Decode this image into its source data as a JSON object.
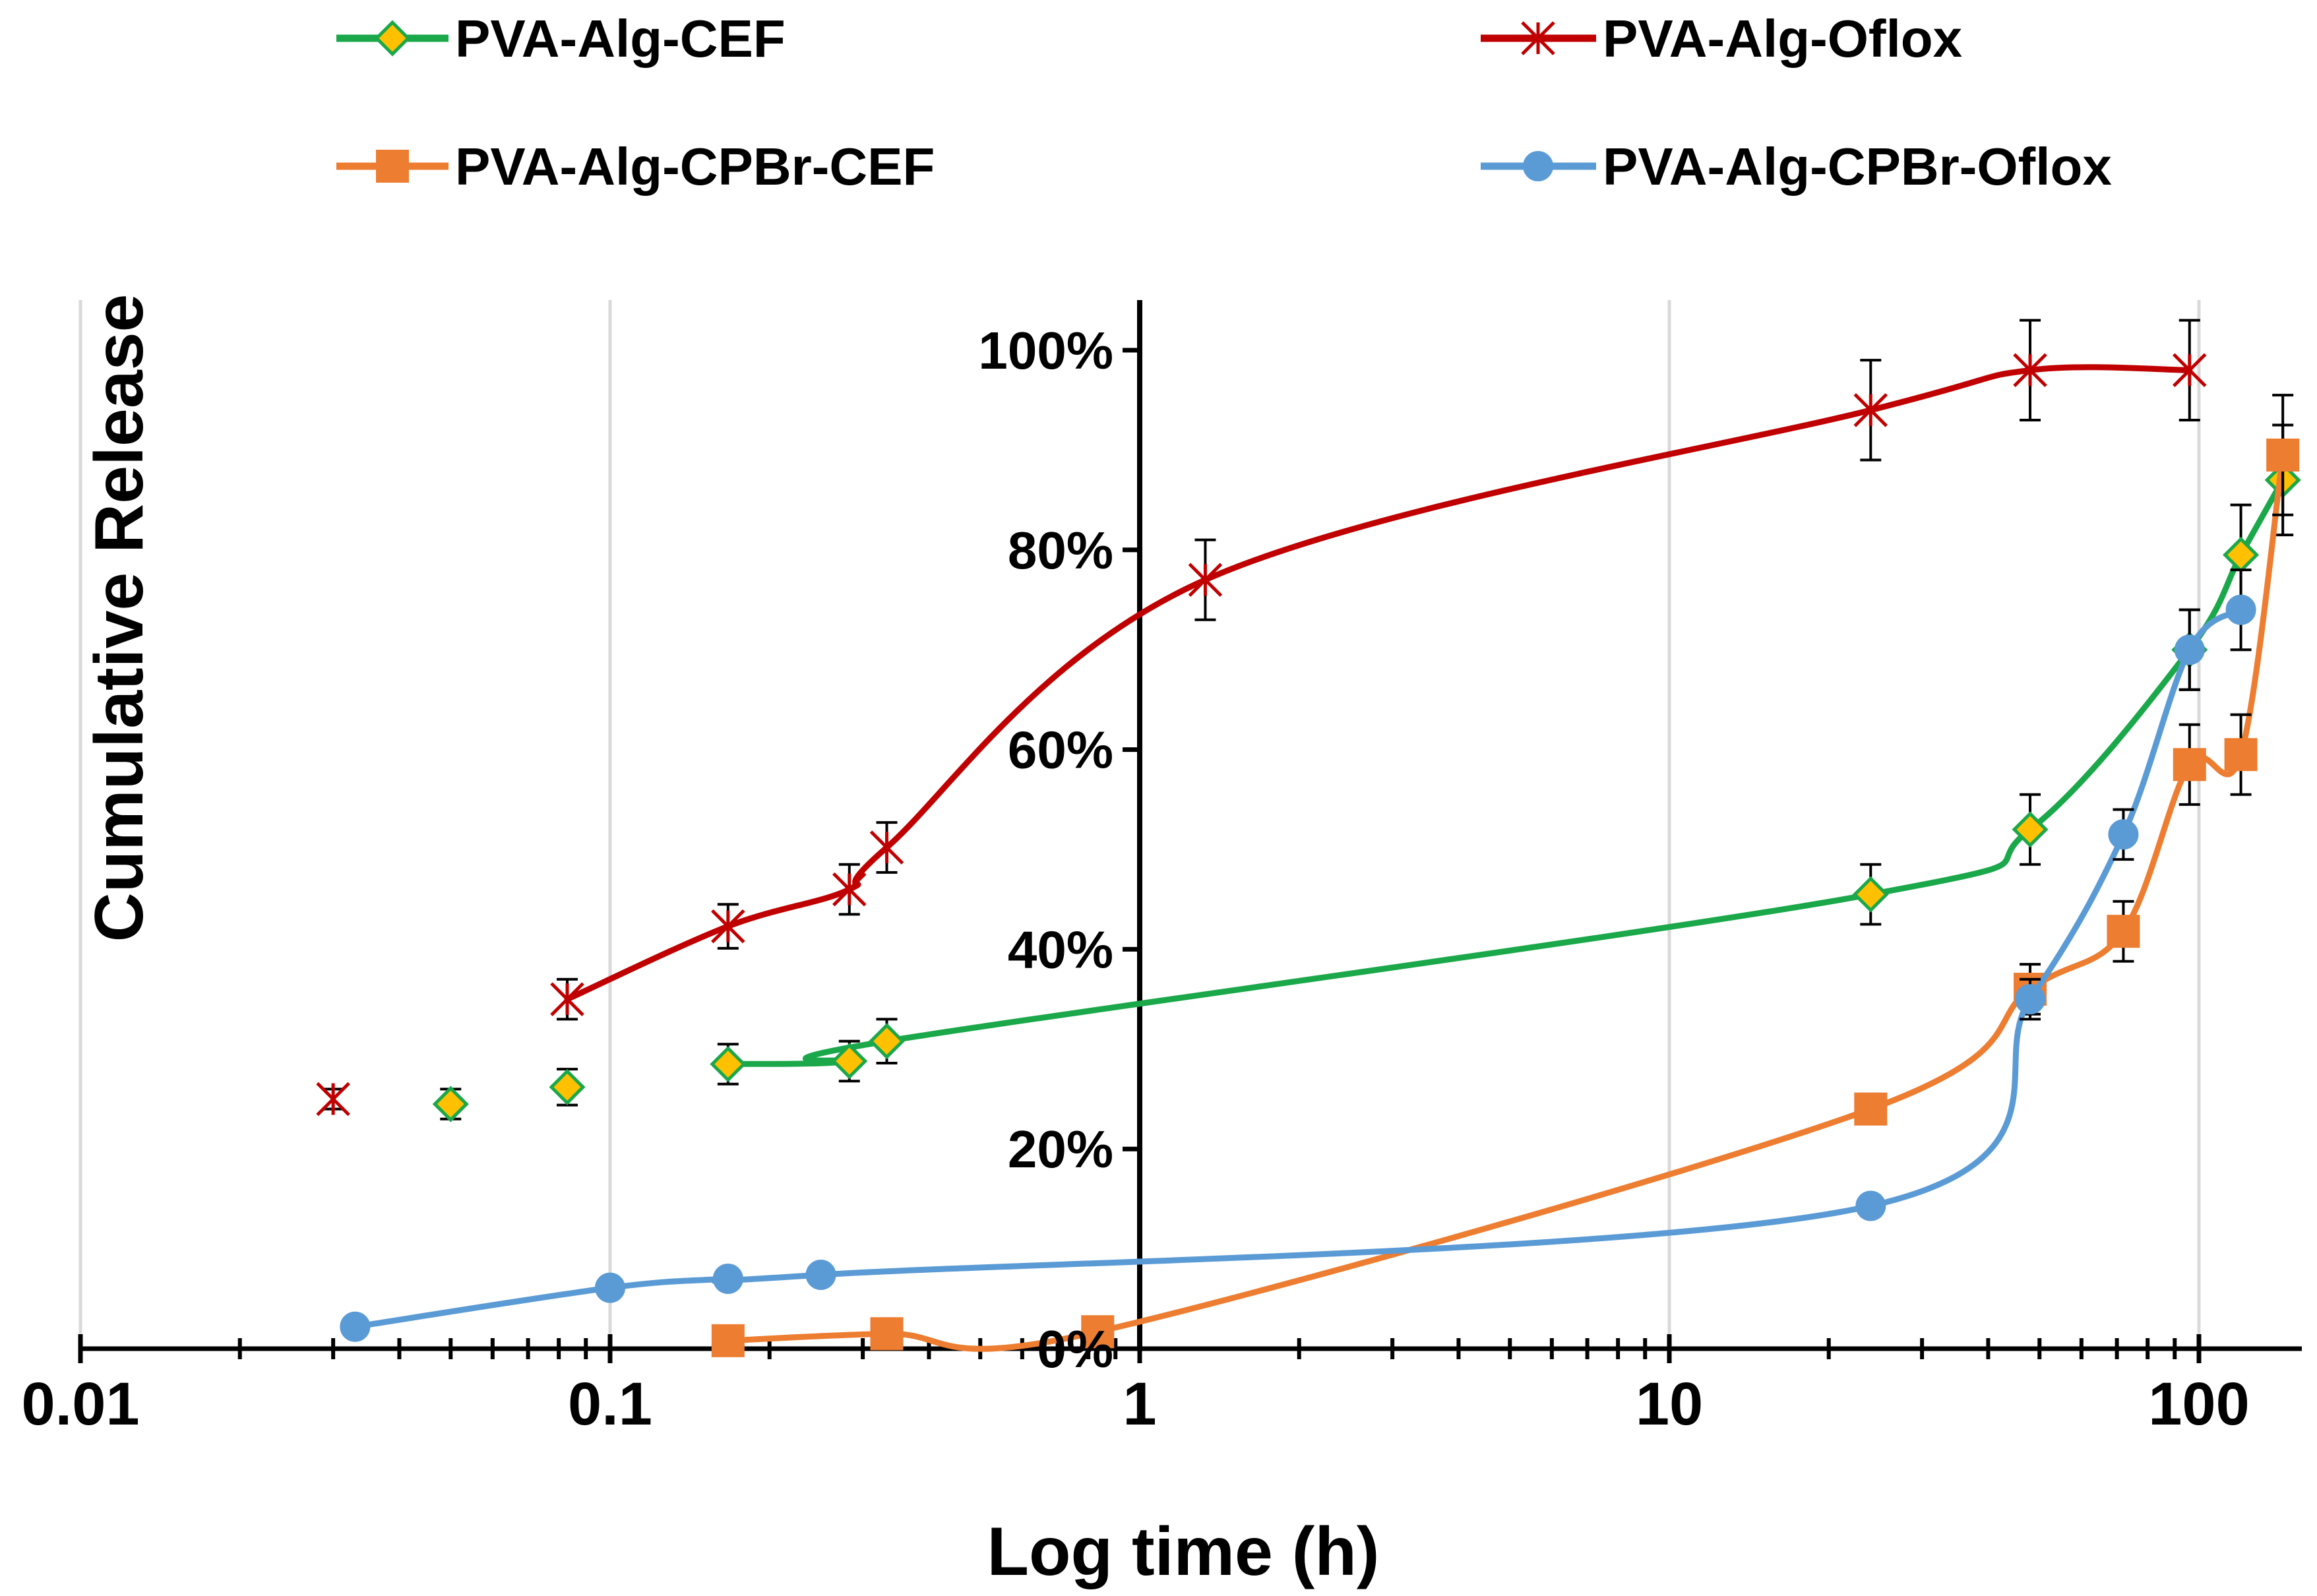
{
  "chart_data": {
    "type": "line",
    "x_scale": "log",
    "xlabel": "Log time (h)",
    "ylabel": "Cumulative Release",
    "xlim": [
      0.01,
      150
    ],
    "ylim": [
      0,
      1.05
    ],
    "x_ticks": [
      {
        "value": 0.01,
        "label": "0.01"
      },
      {
        "value": 0.1,
        "label": "0.1"
      },
      {
        "value": 1,
        "label": "1"
      },
      {
        "value": 10,
        "label": "10"
      },
      {
        "value": 100,
        "label": "100"
      }
    ],
    "y_ticks": [
      {
        "value": 0,
        "label": "0%"
      },
      {
        "value": 0.2,
        "label": "20%"
      },
      {
        "value": 0.4,
        "label": "40%"
      },
      {
        "value": 0.6,
        "label": "60%"
      },
      {
        "value": 0.8,
        "label": "80%"
      },
      {
        "value": 1.0,
        "label": "100%"
      }
    ],
    "grid": "vertical major",
    "legend_position": "top",
    "series": [
      {
        "name": "PVA-Alg-CEF",
        "color": "#1aa84a",
        "marker": "diamond",
        "marker_fill": "#ffc000",
        "x": [
          0.05,
          0.083,
          0.167,
          0.283,
          0.333,
          24,
          48,
          96,
          120,
          144
        ],
        "y": [
          0.245,
          0.262,
          0.285,
          0.288,
          0.308,
          0.455,
          0.52,
          0.7,
          0.795,
          0.87
        ],
        "err": [
          0.015,
          0.018,
          0.02,
          0.02,
          0.022,
          0.03,
          0.035,
          0.04,
          0.05,
          0.055
        ],
        "connected_from": 2
      },
      {
        "name": "PVA-Alg-Oflox",
        "color": "#c00000",
        "marker": "star",
        "x": [
          0.03,
          0.083,
          0.167,
          0.283,
          0.333,
          1.33,
          24,
          48,
          96
        ],
        "y": [
          0.25,
          0.35,
          0.423,
          0.46,
          0.502,
          0.77,
          0.94,
          0.98,
          0.98
        ],
        "err": [
          0.01,
          0.02,
          0.022,
          0.025,
          0.025,
          0.04,
          0.05,
          0.05,
          0.05
        ],
        "connected_from": 1
      },
      {
        "name": "PVA-Alg-CPBr-CEF",
        "color": "#ed7d31",
        "marker": "square",
        "x": [
          0.167,
          0.333,
          0.833,
          24,
          48,
          72,
          96,
          120,
          144
        ],
        "y": [
          0.008,
          0.015,
          0.017,
          0.24,
          0.36,
          0.418,
          0.585,
          0.595,
          0.895
        ],
        "err": [
          0.003,
          0.004,
          0.005,
          0.015,
          0.025,
          0.03,
          0.04,
          0.04,
          0.06
        ],
        "connected_from": 0
      },
      {
        "name": "PVA-Alg-CPBr-Oflox",
        "color": "#5b9bd5",
        "marker": "circle",
        "x": [
          0.033,
          0.1,
          0.167,
          0.25,
          24,
          48,
          72,
          96,
          120
        ],
        "y": [
          0.022,
          0.061,
          0.07,
          0.074,
          0.143,
          0.35,
          0.515,
          0.7,
          0.74
        ],
        "err": [
          0.004,
          0.006,
          0.006,
          0.006,
          0.01,
          0.02,
          0.025,
          0.04,
          0.04
        ],
        "connected_from": 0
      }
    ]
  }
}
